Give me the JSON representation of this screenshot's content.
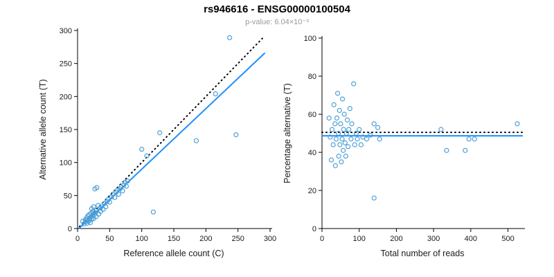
{
  "header": {
    "title": "rs946616 - ENSG00000100504",
    "subtitle": "p-value: 6.04×10⁻³"
  },
  "style": {
    "point_color": "#4D9FD8",
    "fit_line_color": "#1E8FFF",
    "identity_line_color": "#000000",
    "axis_color": "#000000",
    "subtitle_color": "#9a9a9a"
  },
  "chart_data": [
    {
      "type": "scatter",
      "name": "allele-counts",
      "xlabel": "Reference allele count (C)",
      "ylabel": "Alternative allele count (T)",
      "xlim": [
        0,
        300
      ],
      "ylim": [
        0,
        300
      ],
      "xticks": [
        0,
        50,
        100,
        150,
        200,
        250,
        300
      ],
      "yticks": [
        0,
        50,
        100,
        150,
        200,
        250,
        300
      ],
      "grid": false,
      "legend": "none",
      "lines": [
        {
          "label": "identity-line",
          "style": "dotted",
          "color": "#000000",
          "x1": 3,
          "y1": 3,
          "x2": 288,
          "y2": 288
        },
        {
          "label": "regression-fit",
          "style": "solid",
          "color": "#1E8FFF",
          "x1": 2,
          "y1": 0,
          "x2": 292,
          "y2": 266
        }
      ],
      "points": [
        [
          8,
          11
        ],
        [
          10,
          7
        ],
        [
          12,
          13
        ],
        [
          13,
          10
        ],
        [
          14,
          16
        ],
        [
          15,
          8
        ],
        [
          15,
          13
        ],
        [
          16,
          19
        ],
        [
          17,
          11
        ],
        [
          18,
          15
        ],
        [
          18,
          21
        ],
        [
          19,
          13
        ],
        [
          20,
          9
        ],
        [
          20,
          17
        ],
        [
          21,
          23
        ],
        [
          22,
          14
        ],
        [
          22,
          30
        ],
        [
          23,
          19
        ],
        [
          24,
          26
        ],
        [
          25,
          15
        ],
        [
          25,
          33
        ],
        [
          26,
          21
        ],
        [
          27,
          60
        ],
        [
          28,
          24
        ],
        [
          29,
          18
        ],
        [
          30,
          28
        ],
        [
          30,
          62
        ],
        [
          32,
          35
        ],
        [
          33,
          22
        ],
        [
          35,
          31
        ],
        [
          36,
          26
        ],
        [
          38,
          34
        ],
        [
          40,
          29
        ],
        [
          42,
          38
        ],
        [
          44,
          33
        ],
        [
          46,
          41
        ],
        [
          48,
          44
        ],
        [
          50,
          40
        ],
        [
          53,
          48
        ],
        [
          55,
          52
        ],
        [
          58,
          47
        ],
        [
          60,
          55
        ],
        [
          62,
          58
        ],
        [
          64,
          52
        ],
        [
          66,
          60
        ],
        [
          68,
          63
        ],
        [
          70,
          57
        ],
        [
          72,
          66
        ],
        [
          74,
          70
        ],
        [
          76,
          64
        ],
        [
          78,
          72
        ],
        [
          100,
          120
        ],
        [
          108,
          110
        ],
        [
          118,
          25
        ],
        [
          128,
          145
        ],
        [
          185,
          133
        ],
        [
          215,
          204
        ],
        [
          237,
          289
        ],
        [
          247,
          142
        ]
      ]
    },
    {
      "type": "scatter",
      "name": "percentage-vs-depth",
      "xlabel": "Total number of reads",
      "ylabel": "Percentage alternative (T)",
      "xlim": [
        0,
        540
      ],
      "ylim": [
        0,
        100
      ],
      "xticks": [
        0,
        100,
        200,
        300,
        400,
        500
      ],
      "yticks": [
        0,
        20,
        40,
        60,
        80,
        100
      ],
      "grid": false,
      "legend": "none",
      "lines": [
        {
          "label": "reference-50pct-line",
          "style": "dotted",
          "color": "#000000",
          "x1": 0,
          "y1": 50.5,
          "x2": 540,
          "y2": 50.5
        },
        {
          "label": "regression-fit",
          "style": "solid",
          "color": "#1E8FFF",
          "x1": 0,
          "y1": 48.7,
          "x2": 540,
          "y2": 48.7
        }
      ],
      "points": [
        [
          19,
          58
        ],
        [
          22,
          48
        ],
        [
          25,
          36
        ],
        [
          27,
          52
        ],
        [
          30,
          44
        ],
        [
          32,
          65
        ],
        [
          35,
          55
        ],
        [
          36,
          33
        ],
        [
          38,
          47
        ],
        [
          40,
          58
        ],
        [
          42,
          71
        ],
        [
          44,
          50
        ],
        [
          45,
          38
        ],
        [
          47,
          62
        ],
        [
          48,
          44
        ],
        [
          50,
          55
        ],
        [
          52,
          35
        ],
        [
          54,
          47
        ],
        [
          55,
          68
        ],
        [
          57,
          41
        ],
        [
          58,
          52
        ],
        [
          60,
          60
        ],
        [
          62,
          45
        ],
        [
          64,
          38
        ],
        [
          66,
          50
        ],
        [
          68,
          57
        ],
        [
          70,
          43
        ],
        [
          72,
          52
        ],
        [
          75,
          63
        ],
        [
          78,
          47
        ],
        [
          80,
          55
        ],
        [
          85,
          76
        ],
        [
          88,
          44
        ],
        [
          92,
          50
        ],
        [
          95,
          47
        ],
        [
          100,
          52
        ],
        [
          105,
          44
        ],
        [
          110,
          48
        ],
        [
          120,
          47
        ],
        [
          130,
          49
        ],
        [
          140,
          16
        ],
        [
          140,
          55
        ],
        [
          150,
          53
        ],
        [
          155,
          47
        ],
        [
          320,
          52
        ],
        [
          335,
          41
        ],
        [
          385,
          41
        ],
        [
          395,
          47
        ],
        [
          410,
          47
        ],
        [
          525,
          55
        ]
      ]
    }
  ]
}
